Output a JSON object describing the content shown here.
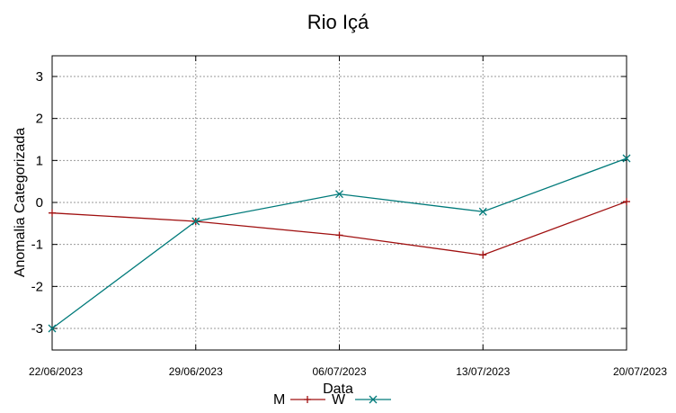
{
  "chart_data": {
    "type": "line",
    "title": "Rio Içá",
    "xlabel": "Data",
    "ylabel": "Anomalia Categorizada",
    "categories": [
      "22/06/2023",
      "29/06/2023",
      "06/07/2023",
      "13/07/2023",
      "20/07/2023"
    ],
    "yticks": [
      "3",
      "2",
      "1",
      "0",
      "-1",
      "-2",
      "-3"
    ],
    "ylim": [
      -3.5,
      3.5
    ],
    "grid": true,
    "legend_position": "bottom",
    "series": [
      {
        "name": "M",
        "color": "#a01010",
        "marker": "plus",
        "values": [
          -0.25,
          -0.45,
          -0.78,
          -1.25,
          0.02
        ]
      },
      {
        "name": "W",
        "color": "#007a7a",
        "marker": "cross",
        "values": [
          -3.0,
          -0.45,
          0.2,
          -0.22,
          1.05
        ]
      }
    ]
  }
}
